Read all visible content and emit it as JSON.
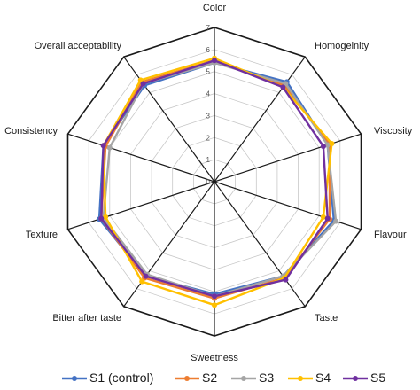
{
  "chart_data": {
    "type": "radar",
    "title": "",
    "axes": [
      "Color",
      "Homogeinity",
      "Viscosity",
      "Flavour",
      "Taste",
      "Sweetness",
      "Bitter after taste",
      "Texture",
      "Consistency",
      "Overall acceptability"
    ],
    "range": [
      0,
      7
    ],
    "ticks": [
      "0",
      "1",
      "2",
      "3",
      "4",
      "5",
      "6",
      "7"
    ],
    "grid": true,
    "legend_position": "bottom",
    "series": [
      {
        "name": "S1 (control)",
        "color": "#4472C4",
        "values": [
          5.4,
          5.6,
          5.4,
          5.7,
          5.3,
          5.1,
          5.3,
          5.5,
          5.3,
          5.4
        ]
      },
      {
        "name": "S2",
        "color": "#ED7D31",
        "values": [
          5.5,
          5.4,
          5.5,
          5.5,
          5.4,
          5.3,
          5.4,
          5.4,
          5.2,
          5.6
        ]
      },
      {
        "name": "S3",
        "color": "#A5A5A5",
        "values": [
          5.4,
          5.5,
          5.4,
          5.8,
          5.3,
          5.2,
          5.2,
          5.3,
          5.0,
          5.5
        ]
      },
      {
        "name": "S4",
        "color": "#FFC000",
        "values": [
          5.6,
          5.3,
          5.6,
          5.2,
          5.4,
          5.6,
          5.6,
          5.2,
          5.3,
          5.7
        ]
      },
      {
        "name": "S5",
        "color": "#7030A0",
        "values": [
          5.5,
          5.3,
          5.2,
          5.4,
          5.5,
          5.2,
          5.3,
          5.4,
          5.3,
          5.5
        ]
      }
    ]
  }
}
